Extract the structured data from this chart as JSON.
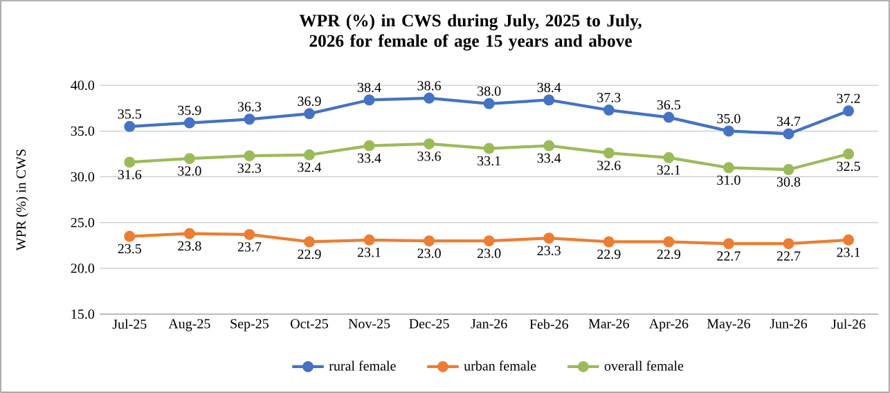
{
  "chart_data": {
    "type": "line",
    "title": "WPR (%) in CWS during July, 2025 to July, 2026 for female of age 15 years and above",
    "ylabel": "WPR (%) in CWS",
    "categories": [
      "Jul-25",
      "Aug-25",
      "Sep-25",
      "Oct-25",
      "Nov-25",
      "Dec-25",
      "Jan-26",
      "Feb-26",
      "Mar-26",
      "Apr-26",
      "May-26",
      "Jun-26",
      "Jul-26"
    ],
    "series": [
      {
        "name": "rural female",
        "color": "#4472c4",
        "values": [
          35.5,
          35.9,
          36.3,
          36.9,
          38.4,
          38.6,
          38.0,
          38.4,
          37.3,
          36.5,
          35.0,
          34.7,
          37.2
        ],
        "value_labels": [
          "35.5",
          "35.9",
          "36.3",
          "36.9",
          "38.4",
          "38.6",
          "38.0",
          "38.4",
          "37.3",
          "36.5",
          "35.0",
          "34.7",
          "37.2"
        ]
      },
      {
        "name": "urban female",
        "color": "#ed7d31",
        "values": [
          23.5,
          23.8,
          23.7,
          22.9,
          23.1,
          23.0,
          23.0,
          23.3,
          22.9,
          22.9,
          22.7,
          22.7,
          23.1
        ],
        "value_labels": [
          "23.5",
          "23.8",
          "23.7",
          "22.9",
          "23.1",
          "23.0",
          "23.0",
          "23.3",
          "22.9",
          "22.9",
          "22.7",
          "22.7",
          "23.1"
        ]
      },
      {
        "name": "overall female",
        "color": "#9bbb59",
        "values": [
          31.6,
          32.0,
          32.3,
          32.4,
          33.4,
          33.6,
          33.1,
          33.4,
          32.6,
          32.1,
          31.0,
          30.8,
          32.5
        ],
        "value_labels": [
          "31.6",
          "32.0",
          "32.3",
          "32.4",
          "33.4",
          "33.6",
          "33.1",
          "33.4",
          "32.6",
          "32.1",
          "31.0",
          "30.8",
          "32.5"
        ]
      }
    ],
    "ylim": [
      15,
      40
    ],
    "yticks": [
      {
        "value": 15,
        "label": "15.0"
      },
      {
        "value": 20,
        "label": "20.0"
      },
      {
        "value": 25,
        "label": "25.0"
      },
      {
        "value": 30,
        "label": "30.0"
      },
      {
        "value": 35,
        "label": "35.0"
      },
      {
        "value": 40,
        "label": "40.0"
      }
    ],
    "grid": "y",
    "legend": "bottom",
    "marker": "circle",
    "line_style": "solid"
  }
}
